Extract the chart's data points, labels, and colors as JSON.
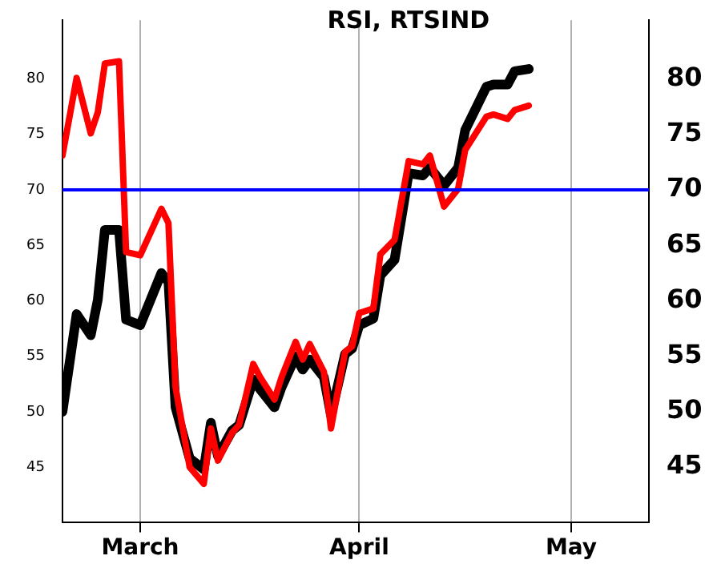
{
  "chart_data": {
    "type": "line",
    "title": "RSI, RTSIND",
    "x": [
      "--02-18",
      "--02-20",
      "--02-22",
      "--02-23",
      "--02-24",
      "--02-26",
      "--02-27",
      "--03-01",
      "--03-04",
      "--03-05",
      "--03-06",
      "--03-08",
      "--03-10",
      "--03-11",
      "--03-12",
      "--03-14",
      "--03-15",
      "--03-17",
      "--03-18",
      "--03-20",
      "--03-21",
      "--03-23",
      "--03-24",
      "--03-25",
      "--03-27",
      "--03-28",
      "--03-30",
      "--03-31",
      "--04-01",
      "--04-03",
      "--04-04",
      "--04-06",
      "--04-08",
      "--04-10",
      "--04-11",
      "--04-13",
      "--04-15",
      "--04-16",
      "--04-19",
      "--04-20",
      "--04-22",
      "--04-23",
      "--04-25"
    ],
    "series": [
      {
        "color": "#ff0000",
        "values": [
          73.1,
          80.1,
          75.1,
          77.0,
          81.4,
          81.6,
          64.4,
          64.1,
          68.3,
          67.0,
          52.2,
          45.0,
          43.5,
          48.5,
          45.6,
          48.1,
          48.8,
          54.3,
          53.1,
          51.1,
          53.1,
          56.3,
          54.7,
          56.1,
          53.6,
          48.5,
          55.4,
          55.9,
          58.9,
          59.3,
          64.2,
          65.5,
          72.6,
          72.3,
          73.1,
          68.5,
          70.1,
          73.6,
          76.6,
          76.8,
          76.4,
          77.2,
          77.6
        ]
      },
      {
        "color": "#000000",
        "values": [
          50.0,
          58.8,
          56.9,
          60.1,
          66.4,
          66.4,
          58.3,
          57.8,
          62.5,
          61.7,
          50.4,
          45.8,
          44.8,
          49.0,
          46.0,
          48.3,
          48.8,
          52.9,
          52.0,
          50.4,
          52.2,
          55.0,
          53.8,
          54.7,
          53.1,
          49.7,
          55.2,
          55.7,
          57.8,
          58.4,
          62.3,
          63.7,
          71.5,
          71.3,
          72.0,
          70.4,
          72.0,
          75.4,
          79.3,
          79.5,
          79.5,
          80.7,
          80.9
        ]
      }
    ],
    "xlim": [
      "--02-18",
      "--05-12"
    ],
    "xticks": [
      {
        "value": "--03-01",
        "label": "March"
      },
      {
        "value": "--04-01",
        "label": "April"
      },
      {
        "value": "--05-01",
        "label": "May"
      }
    ],
    "ylim": [
      40,
      85.3
    ],
    "yticks": [
      45,
      50,
      55,
      60,
      65,
      70,
      75,
      80
    ],
    "y2lim": [
      40,
      85.3
    ],
    "y2ticks": [
      45,
      50,
      55,
      60,
      65,
      70,
      75,
      80
    ],
    "ref_lines": [
      {
        "axis": "y",
        "value": 70,
        "color": "#0000ff"
      }
    ],
    "grid": "x",
    "legend": false,
    "marker": "none",
    "line_style": "solid"
  }
}
